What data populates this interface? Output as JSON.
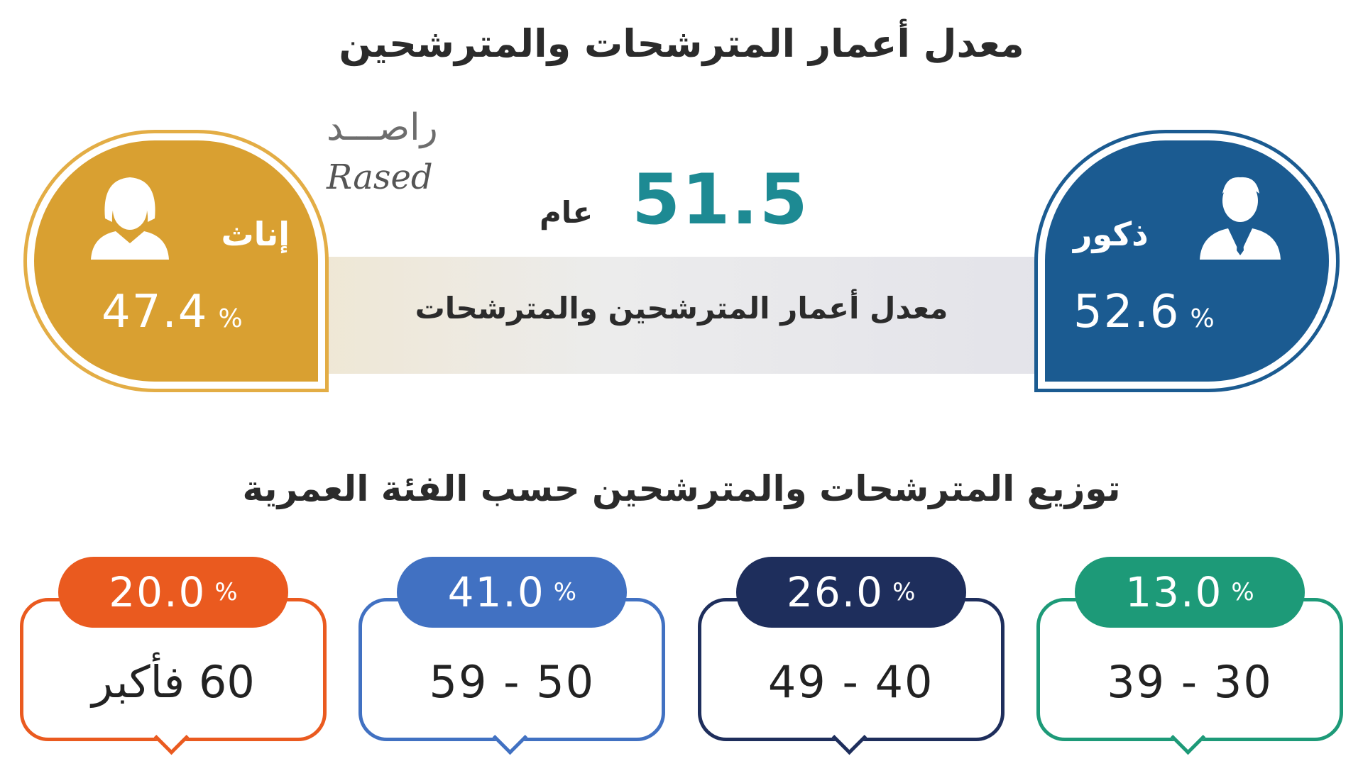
{
  "title": "معدل أعمار المترشحات والمترشحين",
  "logo": {
    "arabic": "راصـــد",
    "english": "Rased"
  },
  "average": {
    "value": "51.5",
    "unit": "عام",
    "label": "معدل أعمار المترشحين والمترشحات"
  },
  "percent_sign": "%",
  "male": {
    "label": "ذكور",
    "value": "52.6"
  },
  "female": {
    "label": "إناث",
    "value": "47.4"
  },
  "distribution": {
    "title": "توزيع المترشحات والمترشحين حسب الفئة العمرية",
    "groups": [
      {
        "range": "30 - 39",
        "value": "13.0",
        "color": "#1d9a78"
      },
      {
        "range": "40 - 49",
        "value": "26.0",
        "color": "#1e2e5c"
      },
      {
        "range": "50 - 59",
        "value": "41.0",
        "color": "#4171c2"
      },
      {
        "range": "60 فأكبر",
        "value": "20.0",
        "color": "#ea5a1f"
      }
    ]
  }
}
